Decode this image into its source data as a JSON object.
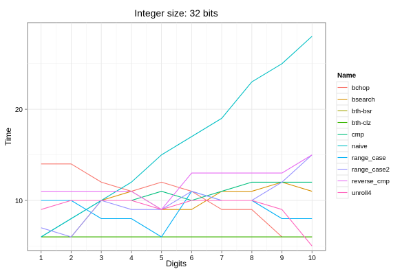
{
  "chart_data": {
    "type": "line",
    "title": "Integer size: 32 bits",
    "xlabel": "Digits",
    "ylabel": "Time",
    "x": [
      1,
      2,
      3,
      4,
      5,
      6,
      7,
      8,
      9,
      10
    ],
    "xticks": [
      "1",
      "2",
      "3",
      "4",
      "5",
      "6",
      "7",
      "8",
      "9",
      "10"
    ],
    "yticks": [
      10,
      20
    ],
    "xlim": [
      0.55,
      10.45
    ],
    "ylim": [
      4.5,
      29.5
    ],
    "grid": true,
    "legend_title": "Name",
    "legend_position": "right",
    "series": [
      {
        "name": "bchop",
        "color": "#F8766D",
        "values": [
          14,
          14,
          12,
          11,
          12,
          11,
          9,
          9,
          6,
          6
        ]
      },
      {
        "name": "bsearch",
        "color": "#D89000",
        "values": [
          6,
          6,
          10,
          11,
          9,
          9,
          11,
          11,
          12,
          11
        ]
      },
      {
        "name": "bth-bsr",
        "color": "#A3A500",
        "values": [
          6,
          6,
          6,
          6,
          6,
          6,
          6,
          6,
          6,
          6
        ]
      },
      {
        "name": "bth-clz",
        "color": "#39B600",
        "values": [
          6,
          6,
          6,
          6,
          6,
          6,
          6,
          6,
          6,
          6
        ]
      },
      {
        "name": "cmp",
        "color": "#00BF7D",
        "values": [
          6,
          8,
          10,
          10,
          11,
          10,
          11,
          12,
          12,
          12
        ]
      },
      {
        "name": "naive",
        "color": "#00BFC4",
        "values": [
          6,
          8,
          10,
          12,
          15,
          17,
          19,
          23,
          25,
          28
        ]
      },
      {
        "name": "range_case",
        "color": "#00B0F6",
        "values": [
          10,
          10,
          8,
          8,
          6,
          11,
          10,
          10,
          8,
          8
        ]
      },
      {
        "name": "range_case2",
        "color": "#9590FF",
        "values": [
          7,
          6,
          10,
          9,
          9,
          11,
          10,
          10,
          12,
          15
        ]
      },
      {
        "name": "reverse_cmp",
        "color": "#E76BF3",
        "values": [
          11,
          11,
          11,
          11,
          9,
          13,
          13,
          13,
          13,
          15
        ]
      },
      {
        "name": "unroll4",
        "color": "#FF62BC",
        "values": [
          9,
          10,
          10,
          10,
          9,
          10,
          10,
          10,
          9,
          5
        ]
      }
    ]
  }
}
